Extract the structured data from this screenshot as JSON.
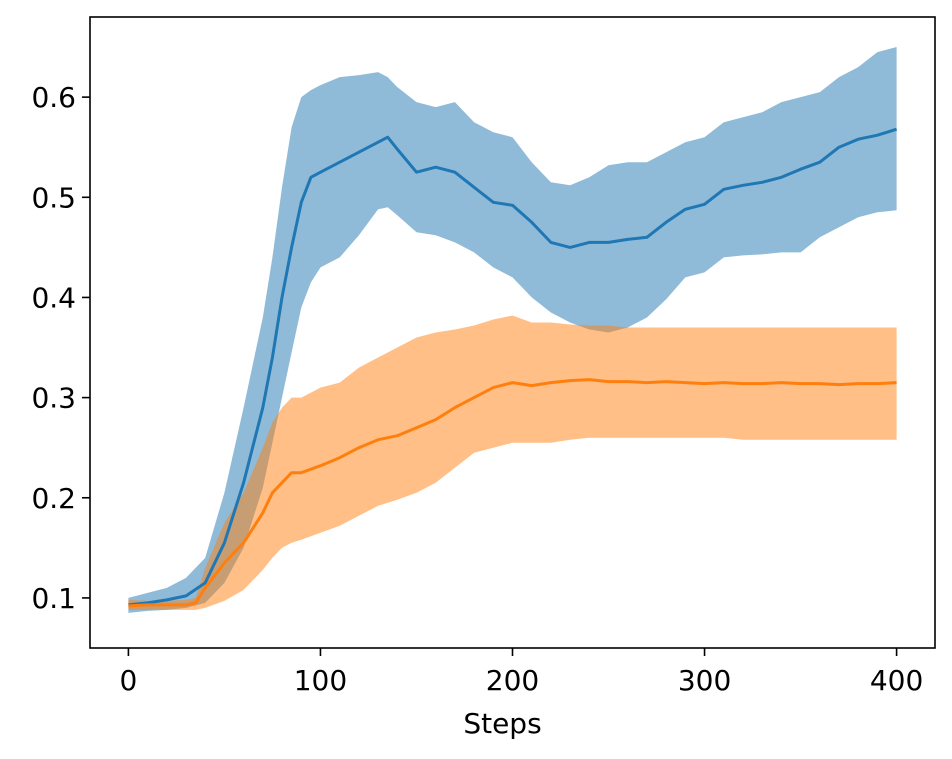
{
  "chart_data": {
    "type": "line",
    "title": "",
    "xlabel": "Steps",
    "ylabel": "",
    "xlim": [
      -20,
      420
    ],
    "ylim": [
      0.05,
      0.68
    ],
    "xticks": [
      0,
      100,
      200,
      300,
      400
    ],
    "xtick_labels": [
      "0",
      "100",
      "200",
      "300",
      "400"
    ],
    "yticks": [
      0.1,
      0.2,
      0.3,
      0.4,
      0.5,
      0.6
    ],
    "ytick_labels": [
      "0.1",
      "0.2",
      "0.3",
      "0.4",
      "0.5",
      "0.6"
    ],
    "grid": false,
    "legend": "none",
    "series": [
      {
        "color": "#1f77b4",
        "band_color": "#1f77b4",
        "x": [
          0,
          10,
          20,
          30,
          40,
          50,
          60,
          70,
          75,
          80,
          85,
          90,
          95,
          100,
          110,
          120,
          130,
          135,
          140,
          150,
          160,
          170,
          180,
          190,
          200,
          210,
          220,
          230,
          240,
          250,
          260,
          270,
          280,
          290,
          300,
          310,
          320,
          330,
          340,
          350,
          360,
          370,
          380,
          390,
          400
        ],
        "mean": [
          0.093,
          0.095,
          0.098,
          0.102,
          0.115,
          0.155,
          0.215,
          0.29,
          0.34,
          0.4,
          0.45,
          0.495,
          0.52,
          0.525,
          0.535,
          0.545,
          0.555,
          0.56,
          0.548,
          0.525,
          0.53,
          0.525,
          0.51,
          0.495,
          0.492,
          0.475,
          0.455,
          0.45,
          0.455,
          0.455,
          0.458,
          0.46,
          0.475,
          0.488,
          0.493,
          0.508,
          0.512,
          0.515,
          0.52,
          0.528,
          0.535,
          0.55,
          0.558,
          0.562,
          0.568
        ],
        "lower": [
          0.085,
          0.087,
          0.088,
          0.09,
          0.095,
          0.115,
          0.15,
          0.21,
          0.255,
          0.3,
          0.345,
          0.39,
          0.415,
          0.43,
          0.44,
          0.462,
          0.488,
          0.49,
          0.482,
          0.465,
          0.462,
          0.455,
          0.445,
          0.43,
          0.42,
          0.4,
          0.385,
          0.375,
          0.368,
          0.365,
          0.37,
          0.38,
          0.398,
          0.42,
          0.425,
          0.44,
          0.442,
          0.443,
          0.445,
          0.445,
          0.46,
          0.47,
          0.48,
          0.485,
          0.487
        ],
        "upper": [
          0.1,
          0.105,
          0.11,
          0.12,
          0.14,
          0.205,
          0.29,
          0.38,
          0.44,
          0.51,
          0.57,
          0.6,
          0.607,
          0.612,
          0.62,
          0.622,
          0.625,
          0.62,
          0.61,
          0.595,
          0.59,
          0.595,
          0.575,
          0.565,
          0.56,
          0.535,
          0.515,
          0.512,
          0.52,
          0.532,
          0.535,
          0.535,
          0.545,
          0.555,
          0.56,
          0.575,
          0.58,
          0.585,
          0.595,
          0.6,
          0.605,
          0.62,
          0.63,
          0.645,
          0.65
        ]
      },
      {
        "color": "#ff7f0e",
        "band_color": "#ff7f0e",
        "x": [
          0,
          10,
          20,
          30,
          35,
          40,
          50,
          60,
          70,
          75,
          80,
          85,
          90,
          100,
          110,
          120,
          130,
          140,
          150,
          160,
          170,
          180,
          190,
          200,
          210,
          220,
          230,
          240,
          250,
          260,
          270,
          280,
          290,
          300,
          310,
          320,
          330,
          340,
          350,
          360,
          370,
          380,
          390,
          400
        ],
        "mean": [
          0.092,
          0.093,
          0.093,
          0.093,
          0.095,
          0.11,
          0.135,
          0.155,
          0.185,
          0.205,
          0.215,
          0.225,
          0.225,
          0.232,
          0.24,
          0.25,
          0.258,
          0.262,
          0.27,
          0.278,
          0.29,
          0.3,
          0.31,
          0.315,
          0.312,
          0.315,
          0.317,
          0.318,
          0.316,
          0.316,
          0.315,
          0.316,
          0.315,
          0.314,
          0.315,
          0.314,
          0.314,
          0.315,
          0.314,
          0.314,
          0.313,
          0.314,
          0.314,
          0.315
        ],
        "lower": [
          0.088,
          0.088,
          0.088,
          0.088,
          0.088,
          0.09,
          0.097,
          0.108,
          0.128,
          0.14,
          0.15,
          0.155,
          0.158,
          0.165,
          0.172,
          0.182,
          0.192,
          0.198,
          0.205,
          0.215,
          0.23,
          0.245,
          0.25,
          0.255,
          0.255,
          0.255,
          0.258,
          0.26,
          0.26,
          0.26,
          0.26,
          0.26,
          0.26,
          0.26,
          0.26,
          0.258,
          0.258,
          0.258,
          0.258,
          0.258,
          0.258,
          0.258,
          0.258,
          0.258
        ],
        "upper": [
          0.098,
          0.097,
          0.097,
          0.098,
          0.1,
          0.13,
          0.175,
          0.205,
          0.25,
          0.275,
          0.29,
          0.3,
          0.3,
          0.31,
          0.315,
          0.33,
          0.34,
          0.35,
          0.36,
          0.365,
          0.368,
          0.372,
          0.378,
          0.382,
          0.375,
          0.375,
          0.373,
          0.372,
          0.372,
          0.37,
          0.37,
          0.37,
          0.37,
          0.37,
          0.37,
          0.37,
          0.37,
          0.37,
          0.37,
          0.37,
          0.37,
          0.37,
          0.37,
          0.37
        ]
      }
    ]
  }
}
